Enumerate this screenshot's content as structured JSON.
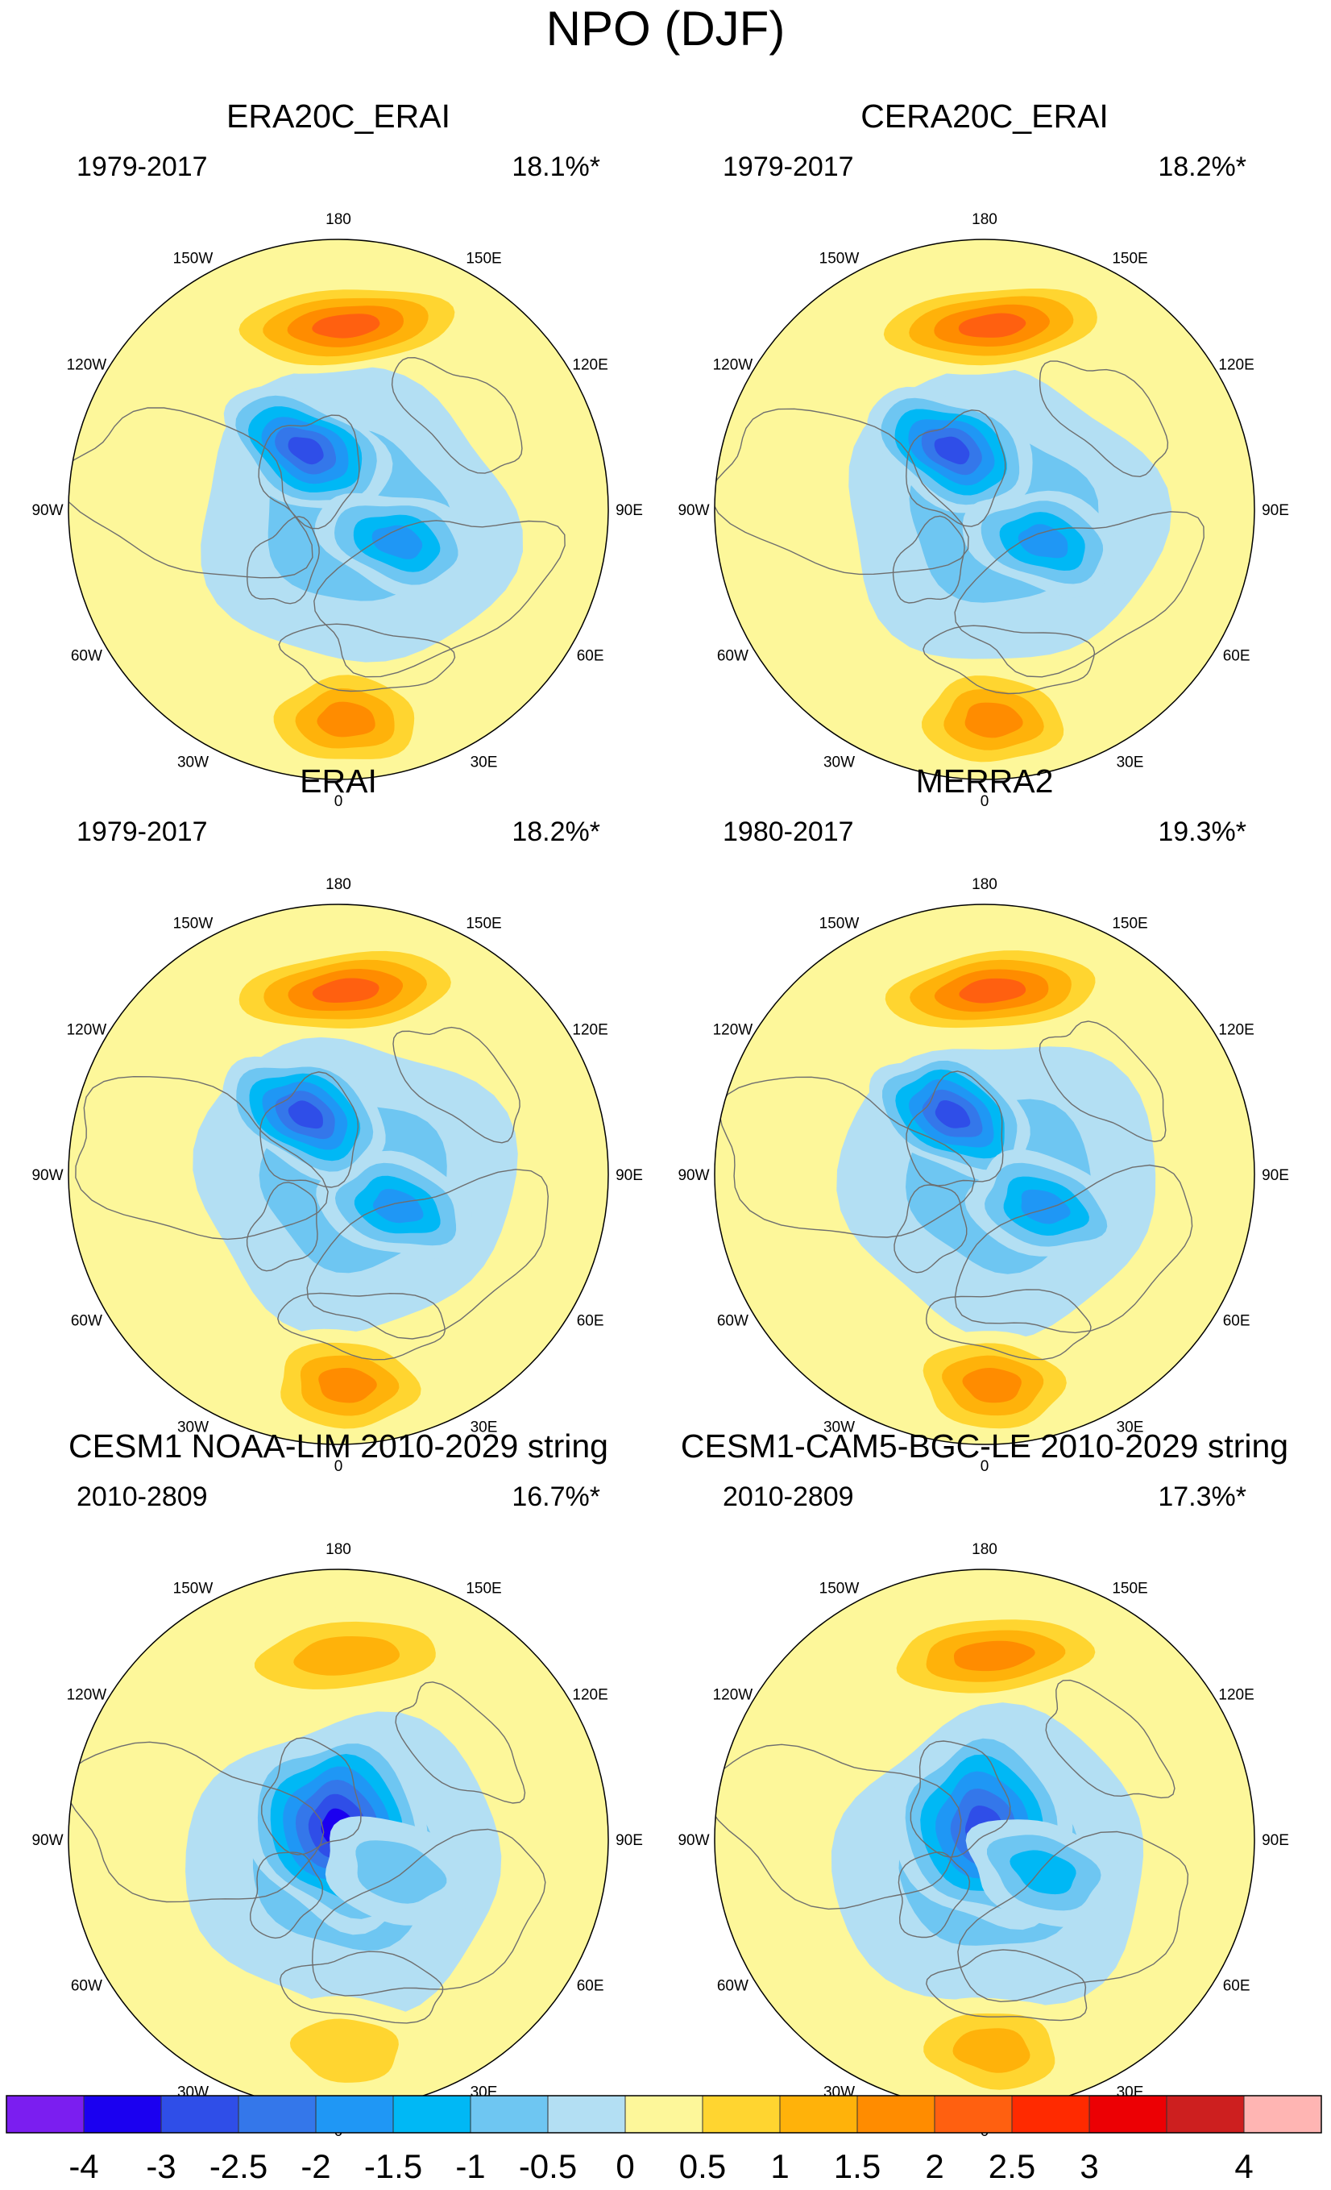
{
  "title": "NPO (DJF)",
  "colors": {
    "coast": "#6e6e6e",
    "border": "#000000",
    "bins": [
      "#7b1ef0",
      "#1b00f0",
      "#2f4ee8",
      "#3477ea",
      "#1f97f5",
      "#00b8f5",
      "#6ec6f2",
      "#b3dff3",
      "#fdf79a",
      "#ffd530",
      "#ffb20a",
      "#ff8c00",
      "#ff6010",
      "#ff2a00",
      "#ec0004",
      "#cd1f1f",
      "#ffb5b3"
    ]
  },
  "chart_data": {
    "type": "contour-map",
    "projection": "north polar stereographic",
    "colorbar": {
      "levels": [
        -4,
        -3.5,
        -3,
        -2.5,
        -2,
        -1.5,
        -1,
        -0.5,
        0,
        0.5,
        1,
        1.5,
        2,
        2.5,
        3,
        3.5,
        4
      ],
      "labels": [
        "-4",
        "-3",
        "-2.5",
        "-2",
        "-1.5",
        "-1",
        "-0.5",
        "0",
        "0.5",
        "1",
        "1.5",
        "2",
        "2.5",
        "3",
        "4"
      ]
    },
    "lon_labels": [
      "180",
      "150W",
      "150E",
      "120W",
      "120E",
      "90W",
      "90E",
      "60W",
      "60E",
      "30W",
      "30E",
      "0"
    ],
    "panels": [
      {
        "title": "ERA20C_ERAI",
        "period": "1979-2017",
        "variance": "18.1%*",
        "pos_pacific": 2.6,
        "neg_center": -3.1,
        "neg_europe": -2.0,
        "pos_atlantic": 2.2,
        "dipole_shift": 0
      },
      {
        "title": "CERA20C_ERAI",
        "period": "1979-2017",
        "variance": "18.2%*",
        "pos_pacific": 2.5,
        "neg_center": -3.2,
        "neg_europe": -2.1,
        "pos_atlantic": 2.1,
        "dipole_shift": 0
      },
      {
        "title": "ERAI",
        "period": "1979-2017",
        "variance": "18.2%*",
        "pos_pacific": 2.7,
        "neg_center": -3.1,
        "neg_europe": -2.2,
        "pos_atlantic": 2.0,
        "dipole_shift": 0
      },
      {
        "title": "MERRA2",
        "period": "1980-2017",
        "variance": "19.3%*",
        "pos_pacific": 2.6,
        "neg_center": -3.2,
        "neg_europe": -2.3,
        "pos_atlantic": 2.2,
        "dipole_shift": 0
      },
      {
        "title": "CESM1 NOAA-LIM 2010-2029 string",
        "period": "2010-2809",
        "variance": "16.7%*",
        "pos_pacific": 1.9,
        "neg_center": -3.6,
        "neg_europe": -1.4,
        "pos_atlantic": 1.3,
        "dipole_shift": 1
      },
      {
        "title": "CESM1-CAM5-BGC-LE 2010-2029 string",
        "period": "2010-2809",
        "variance": "17.3%*",
        "pos_pacific": 2.4,
        "neg_center": -3.4,
        "neg_europe": -1.6,
        "pos_atlantic": 1.5,
        "dipole_shift": 1
      }
    ]
  }
}
